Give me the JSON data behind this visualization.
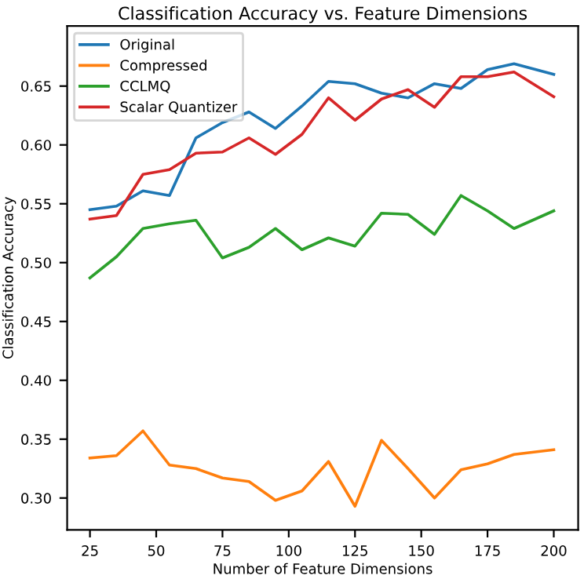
{
  "chart_data": {
    "type": "line",
    "title": "Classification Accuracy vs. Feature Dimensions",
    "xlabel": "Number of Feature Dimensions",
    "ylabel": "Classification Accuracy",
    "x": [
      25,
      35,
      45,
      55,
      65,
      75,
      85,
      95,
      105,
      115,
      125,
      135,
      145,
      155,
      165,
      175,
      185,
      200
    ],
    "series": [
      {
        "name": "Original",
        "color": "#1f77b4",
        "values": [
          0.545,
          0.548,
          0.561,
          0.557,
          0.606,
          0.619,
          0.628,
          0.614,
          0.633,
          0.654,
          0.652,
          0.644,
          0.64,
          0.652,
          0.648,
          0.664,
          0.669,
          0.66
        ]
      },
      {
        "name": "Compressed",
        "color": "#ff7f0e",
        "values": [
          0.334,
          0.336,
          0.357,
          0.328,
          0.325,
          0.317,
          0.314,
          0.298,
          0.306,
          0.331,
          0.293,
          0.349,
          0.325,
          0.3,
          0.324,
          0.329,
          0.337,
          0.341
        ]
      },
      {
        "name": "CCLMQ",
        "color": "#2ca02c",
        "values": [
          0.487,
          0.505,
          0.529,
          0.533,
          0.536,
          0.504,
          0.513,
          0.529,
          0.511,
          0.521,
          0.514,
          0.542,
          0.541,
          0.524,
          0.557,
          0.544,
          0.529,
          0.544
        ]
      },
      {
        "name": "Scalar Quantizer",
        "color": "#d62728",
        "values": [
          0.537,
          0.54,
          0.575,
          0.579,
          0.593,
          0.594,
          0.606,
          0.592,
          0.609,
          0.64,
          0.621,
          0.639,
          0.647,
          0.632,
          0.658,
          0.658,
          0.662,
          0.641
        ]
      }
    ],
    "xlim": [
      16.4,
      209.2
    ],
    "xticks": [
      25,
      50,
      75,
      100,
      125,
      150,
      175,
      200
    ],
    "ylim": [
      0.273,
      0.701
    ],
    "yticks": [
      {
        "value": 0.3,
        "label": "0.30"
      },
      {
        "value": 0.35,
        "label": "0.35"
      },
      {
        "value": 0.4,
        "label": "0.40"
      },
      {
        "value": 0.45,
        "label": "0.45"
      },
      {
        "value": 0.5,
        "label": "0.50"
      },
      {
        "value": 0.55,
        "label": "0.55"
      },
      {
        "value": 0.6,
        "label": "0.60"
      },
      {
        "value": 0.65,
        "label": "0.65"
      }
    ],
    "legend": "top left",
    "grid": false
  }
}
